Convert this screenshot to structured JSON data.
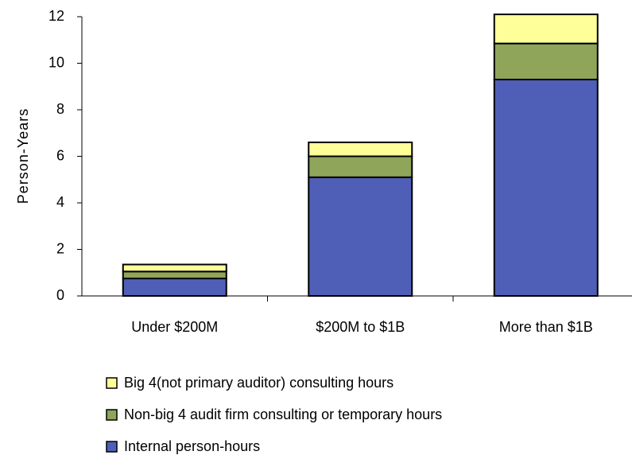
{
  "chart_data": {
    "type": "stacked_bar",
    "y_label": "Person-Years",
    "categories": [
      "Under $200M",
      "$200M to $1B",
      "More than $1B"
    ],
    "series": [
      {
        "name": "Internal person-hours",
        "color": "#4f5fb8",
        "values": [
          0.75,
          5.1,
          9.3
        ]
      },
      {
        "name": "Non-big 4 audit firm consulting or temporary hours",
        "color": "#8fa55a",
        "values": [
          0.3,
          0.9,
          1.55
        ]
      },
      {
        "name": "Big 4(not primary auditor) consulting hours",
        "color": "#ffff99",
        "values": [
          0.3,
          0.6,
          1.25
        ]
      }
    ],
    "ylim": [
      0,
      12
    ],
    "yticks": [
      0,
      2,
      4,
      6,
      8,
      10,
      12
    ]
  }
}
